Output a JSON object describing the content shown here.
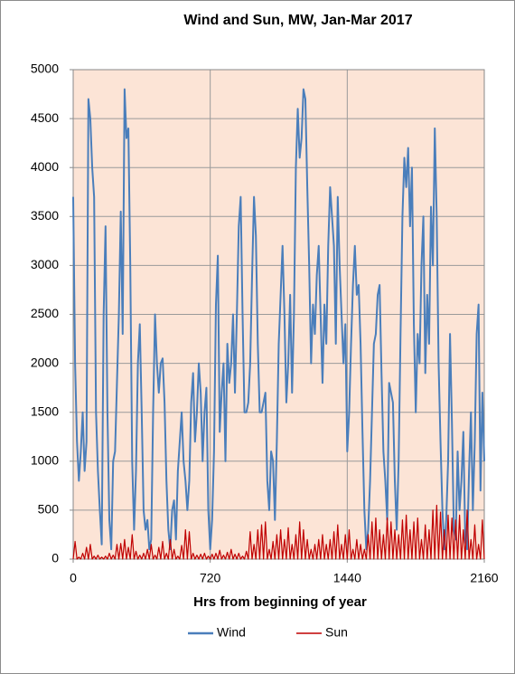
{
  "chart_data": {
    "type": "line",
    "title": "Wind and Sun, MW, Jan-Mar 2017",
    "x_label": "Hrs from beginning of year",
    "x": [
      0,
      10,
      20,
      30,
      40,
      50,
      60,
      70,
      80,
      90,
      100,
      110,
      120,
      130,
      140,
      150,
      160,
      170,
      180,
      190,
      200,
      210,
      220,
      230,
      240,
      250,
      260,
      270,
      280,
      290,
      300,
      310,
      320,
      330,
      340,
      350,
      360,
      370,
      380,
      390,
      400,
      410,
      420,
      430,
      440,
      450,
      460,
      470,
      480,
      490,
      500,
      510,
      520,
      530,
      540,
      550,
      560,
      570,
      580,
      590,
      600,
      610,
      620,
      630,
      640,
      650,
      660,
      670,
      680,
      690,
      700,
      710,
      720,
      730,
      740,
      750,
      760,
      770,
      780,
      790,
      800,
      810,
      820,
      830,
      840,
      850,
      860,
      870,
      880,
      890,
      900,
      910,
      920,
      930,
      940,
      950,
      960,
      970,
      980,
      990,
      1000,
      1010,
      1020,
      1030,
      1040,
      1050,
      1060,
      1070,
      1080,
      1090,
      1100,
      1110,
      1120,
      1130,
      1140,
      1150,
      1160,
      1170,
      1180,
      1190,
      1200,
      1210,
      1220,
      1230,
      1240,
      1250,
      1260,
      1270,
      1280,
      1290,
      1300,
      1310,
      1320,
      1330,
      1340,
      1350,
      1360,
      1370,
      1380,
      1390,
      1400,
      1410,
      1420,
      1430,
      1440,
      1450,
      1460,
      1470,
      1480,
      1490,
      1500,
      1510,
      1520,
      1530,
      1540,
      1550,
      1560,
      1570,
      1580,
      1590,
      1600,
      1610,
      1620,
      1630,
      1640,
      1650,
      1660,
      1670,
      1680,
      1690,
      1700,
      1710,
      1720,
      1730,
      1740,
      1750,
      1760,
      1770,
      1780,
      1790,
      1800,
      1810,
      1820,
      1830,
      1840,
      1850,
      1860,
      1870,
      1880,
      1890,
      1900,
      1910,
      1920,
      1930,
      1940,
      1950,
      1960,
      1970,
      1980,
      1990,
      2000,
      2010,
      2020,
      2030,
      2040,
      2050,
      2060,
      2070,
      2080,
      2090,
      2100,
      2110,
      2120,
      2130,
      2140,
      2150,
      2160
    ],
    "series": [
      {
        "name": "Wind",
        "color": "#4a7ebb",
        "values": [
          3700,
          2000,
          1200,
          800,
          1100,
          1500,
          900,
          1200,
          4700,
          4500,
          4000,
          3700,
          1500,
          900,
          500,
          150,
          2500,
          3400,
          1500,
          400,
          100,
          1000,
          1100,
          1800,
          2500,
          3550,
          2300,
          4800,
          4300,
          4400,
          3000,
          1000,
          300,
          900,
          2000,
          2400,
          1500,
          500,
          300,
          400,
          100,
          200,
          1500,
          2500,
          2000,
          1700,
          2000,
          2050,
          1600,
          800,
          300,
          100,
          500,
          600,
          200,
          900,
          1200,
          1500,
          1000,
          800,
          500,
          800,
          1600,
          1900,
          1200,
          1500,
          2000,
          1700,
          1000,
          1500,
          1750,
          500,
          100,
          400,
          1100,
          2600,
          3100,
          1300,
          1700,
          2000,
          1000,
          2200,
          1800,
          2000,
          2500,
          1700,
          2500,
          3400,
          3700,
          2500,
          1500,
          1500,
          1600,
          2000,
          2900,
          3700,
          3300,
          2200,
          1500,
          1500,
          1600,
          1700,
          800,
          500,
          1100,
          1000,
          400,
          1200,
          2200,
          2700,
          3200,
          2500,
          1600,
          2000,
          2700,
          1700,
          2500,
          4000,
          4600,
          4100,
          4300,
          4800,
          4700,
          3800,
          3000,
          2000,
          2600,
          2300,
          2900,
          3200,
          2500,
          1800,
          2600,
          2200,
          3200,
          3800,
          3500,
          3200,
          2200,
          3700,
          3000,
          2500,
          2000,
          2400,
          1100,
          1500,
          2200,
          2800,
          3200,
          2700,
          2800,
          2200,
          1300,
          500,
          100,
          300,
          800,
          1500,
          2200,
          2300,
          2700,
          2800,
          1900,
          1100,
          800,
          400,
          1800,
          1700,
          1600,
          800,
          300,
          1000,
          2300,
          3500,
          4100,
          3800,
          4200,
          3400,
          4000,
          2400,
          1500,
          2300,
          2000,
          3000,
          3500,
          1900,
          2700,
          2200,
          3600,
          3000,
          4400,
          3500,
          2000,
          1200,
          500,
          100,
          400,
          1000,
          2300,
          1400,
          300,
          200,
          1100,
          500,
          800,
          1300,
          200,
          100,
          900,
          1500,
          500,
          1200,
          2300,
          2600,
          700,
          1700,
          1000
        ]
      },
      {
        "name": "Sun",
        "color": "#c00000",
        "values": [
          0,
          180,
          0,
          20,
          0,
          60,
          0,
          120,
          0,
          150,
          0,
          30,
          0,
          40,
          0,
          20,
          0,
          30,
          0,
          60,
          0,
          40,
          0,
          150,
          0,
          160,
          0,
          200,
          0,
          120,
          0,
          250,
          0,
          80,
          0,
          40,
          0,
          60,
          0,
          100,
          0,
          150,
          0,
          40,
          0,
          120,
          0,
          180,
          0,
          60,
          0,
          200,
          0,
          100,
          0,
          30,
          0,
          140,
          0,
          300,
          0,
          280,
          0,
          60,
          0,
          40,
          0,
          50,
          0,
          60,
          0,
          30,
          0,
          50,
          0,
          60,
          0,
          90,
          0,
          40,
          0,
          70,
          0,
          100,
          0,
          50,
          0,
          60,
          0,
          30,
          0,
          80,
          0,
          280,
          0,
          150,
          0,
          300,
          0,
          350,
          0,
          380,
          0,
          100,
          0,
          180,
          0,
          250,
          0,
          300,
          0,
          200,
          0,
          320,
          0,
          150,
          0,
          250,
          0,
          380,
          0,
          300,
          0,
          200,
          0,
          100,
          0,
          150,
          0,
          200,
          0,
          250,
          0,
          150,
          0,
          200,
          0,
          280,
          0,
          350,
          0,
          150,
          0,
          250,
          0,
          300,
          0,
          100,
          0,
          200,
          0,
          150,
          0,
          100,
          0,
          250,
          0,
          380,
          0,
          420,
          0,
          300,
          0,
          250,
          0,
          420,
          0,
          380,
          0,
          300,
          0,
          250,
          0,
          400,
          0,
          450,
          0,
          300,
          0,
          380,
          0,
          420,
          0,
          200,
          0,
          350,
          0,
          300,
          0,
          500,
          0,
          550,
          0,
          480,
          0,
          300,
          0,
          450,
          0,
          420,
          0,
          400,
          0,
          450,
          0,
          300,
          0,
          500,
          0,
          200,
          0,
          350,
          0,
          150,
          0,
          400,
          0
        ]
      }
    ],
    "xlim": [
      0,
      2160
    ],
    "xticks": [
      0,
      720,
      1440,
      2160
    ],
    "ylim": [
      0,
      5000
    ],
    "yticks": [
      0,
      500,
      1000,
      1500,
      2000,
      2500,
      3000,
      3500,
      4000,
      4500,
      5000
    ],
    "grid": true,
    "legend": "bottom",
    "plot_background": "#fce4d6"
  }
}
